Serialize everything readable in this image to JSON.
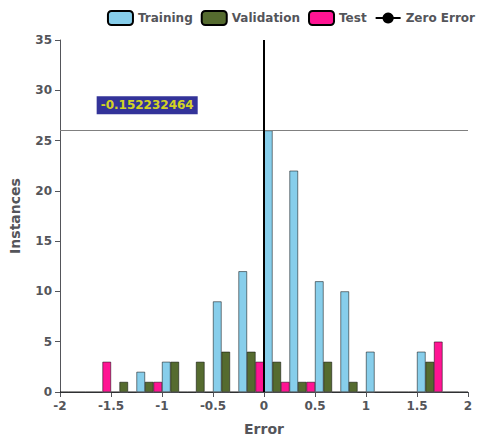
{
  "chart_data": {
    "type": "bar",
    "title": "",
    "xlabel": "Error",
    "ylabel": "Instances",
    "x": [
      -1.875,
      -1.625,
      -1.375,
      -1.125,
      -0.875,
      -0.625,
      -0.375,
      -0.125,
      0.125,
      0.375,
      0.625,
      0.875,
      1.125,
      1.375,
      1.625,
      1.875
    ],
    "series": [
      {
        "name": "Training",
        "color": "#87CEEB",
        "values": [
          0,
          0,
          0,
          2,
          3,
          0,
          9,
          12,
          26,
          22,
          11,
          10,
          4,
          0,
          4,
          0
        ]
      },
      {
        "name": "Validation",
        "color": "#556B2F",
        "values": [
          0,
          0,
          1,
          1,
          3,
          3,
          4,
          4,
          3,
          1,
          3,
          1,
          0,
          0,
          3,
          0
        ]
      },
      {
        "name": "Test",
        "color": "#FF1493",
        "values": [
          0,
          3,
          0,
          1,
          0,
          0,
          0,
          3,
          1,
          1,
          0,
          0,
          0,
          0,
          5,
          0
        ]
      }
    ],
    "hline": {
      "y": 26,
      "color": "#808080"
    },
    "vline": {
      "x": 0,
      "name": "Zero Error",
      "color": "#000000"
    },
    "annotations": [
      {
        "text": "-0.152232464",
        "x": -0.65,
        "y": 28.5
      }
    ],
    "xlim": [
      -2,
      2
    ],
    "xticks": [
      -2,
      -1.5,
      -1,
      -0.5,
      0,
      0.5,
      1,
      1.5,
      2
    ],
    "ylim": [
      0,
      35
    ],
    "yticks": [
      0,
      5,
      10,
      15,
      20,
      25,
      30,
      35
    ],
    "grid": false,
    "legend": "upper right"
  }
}
